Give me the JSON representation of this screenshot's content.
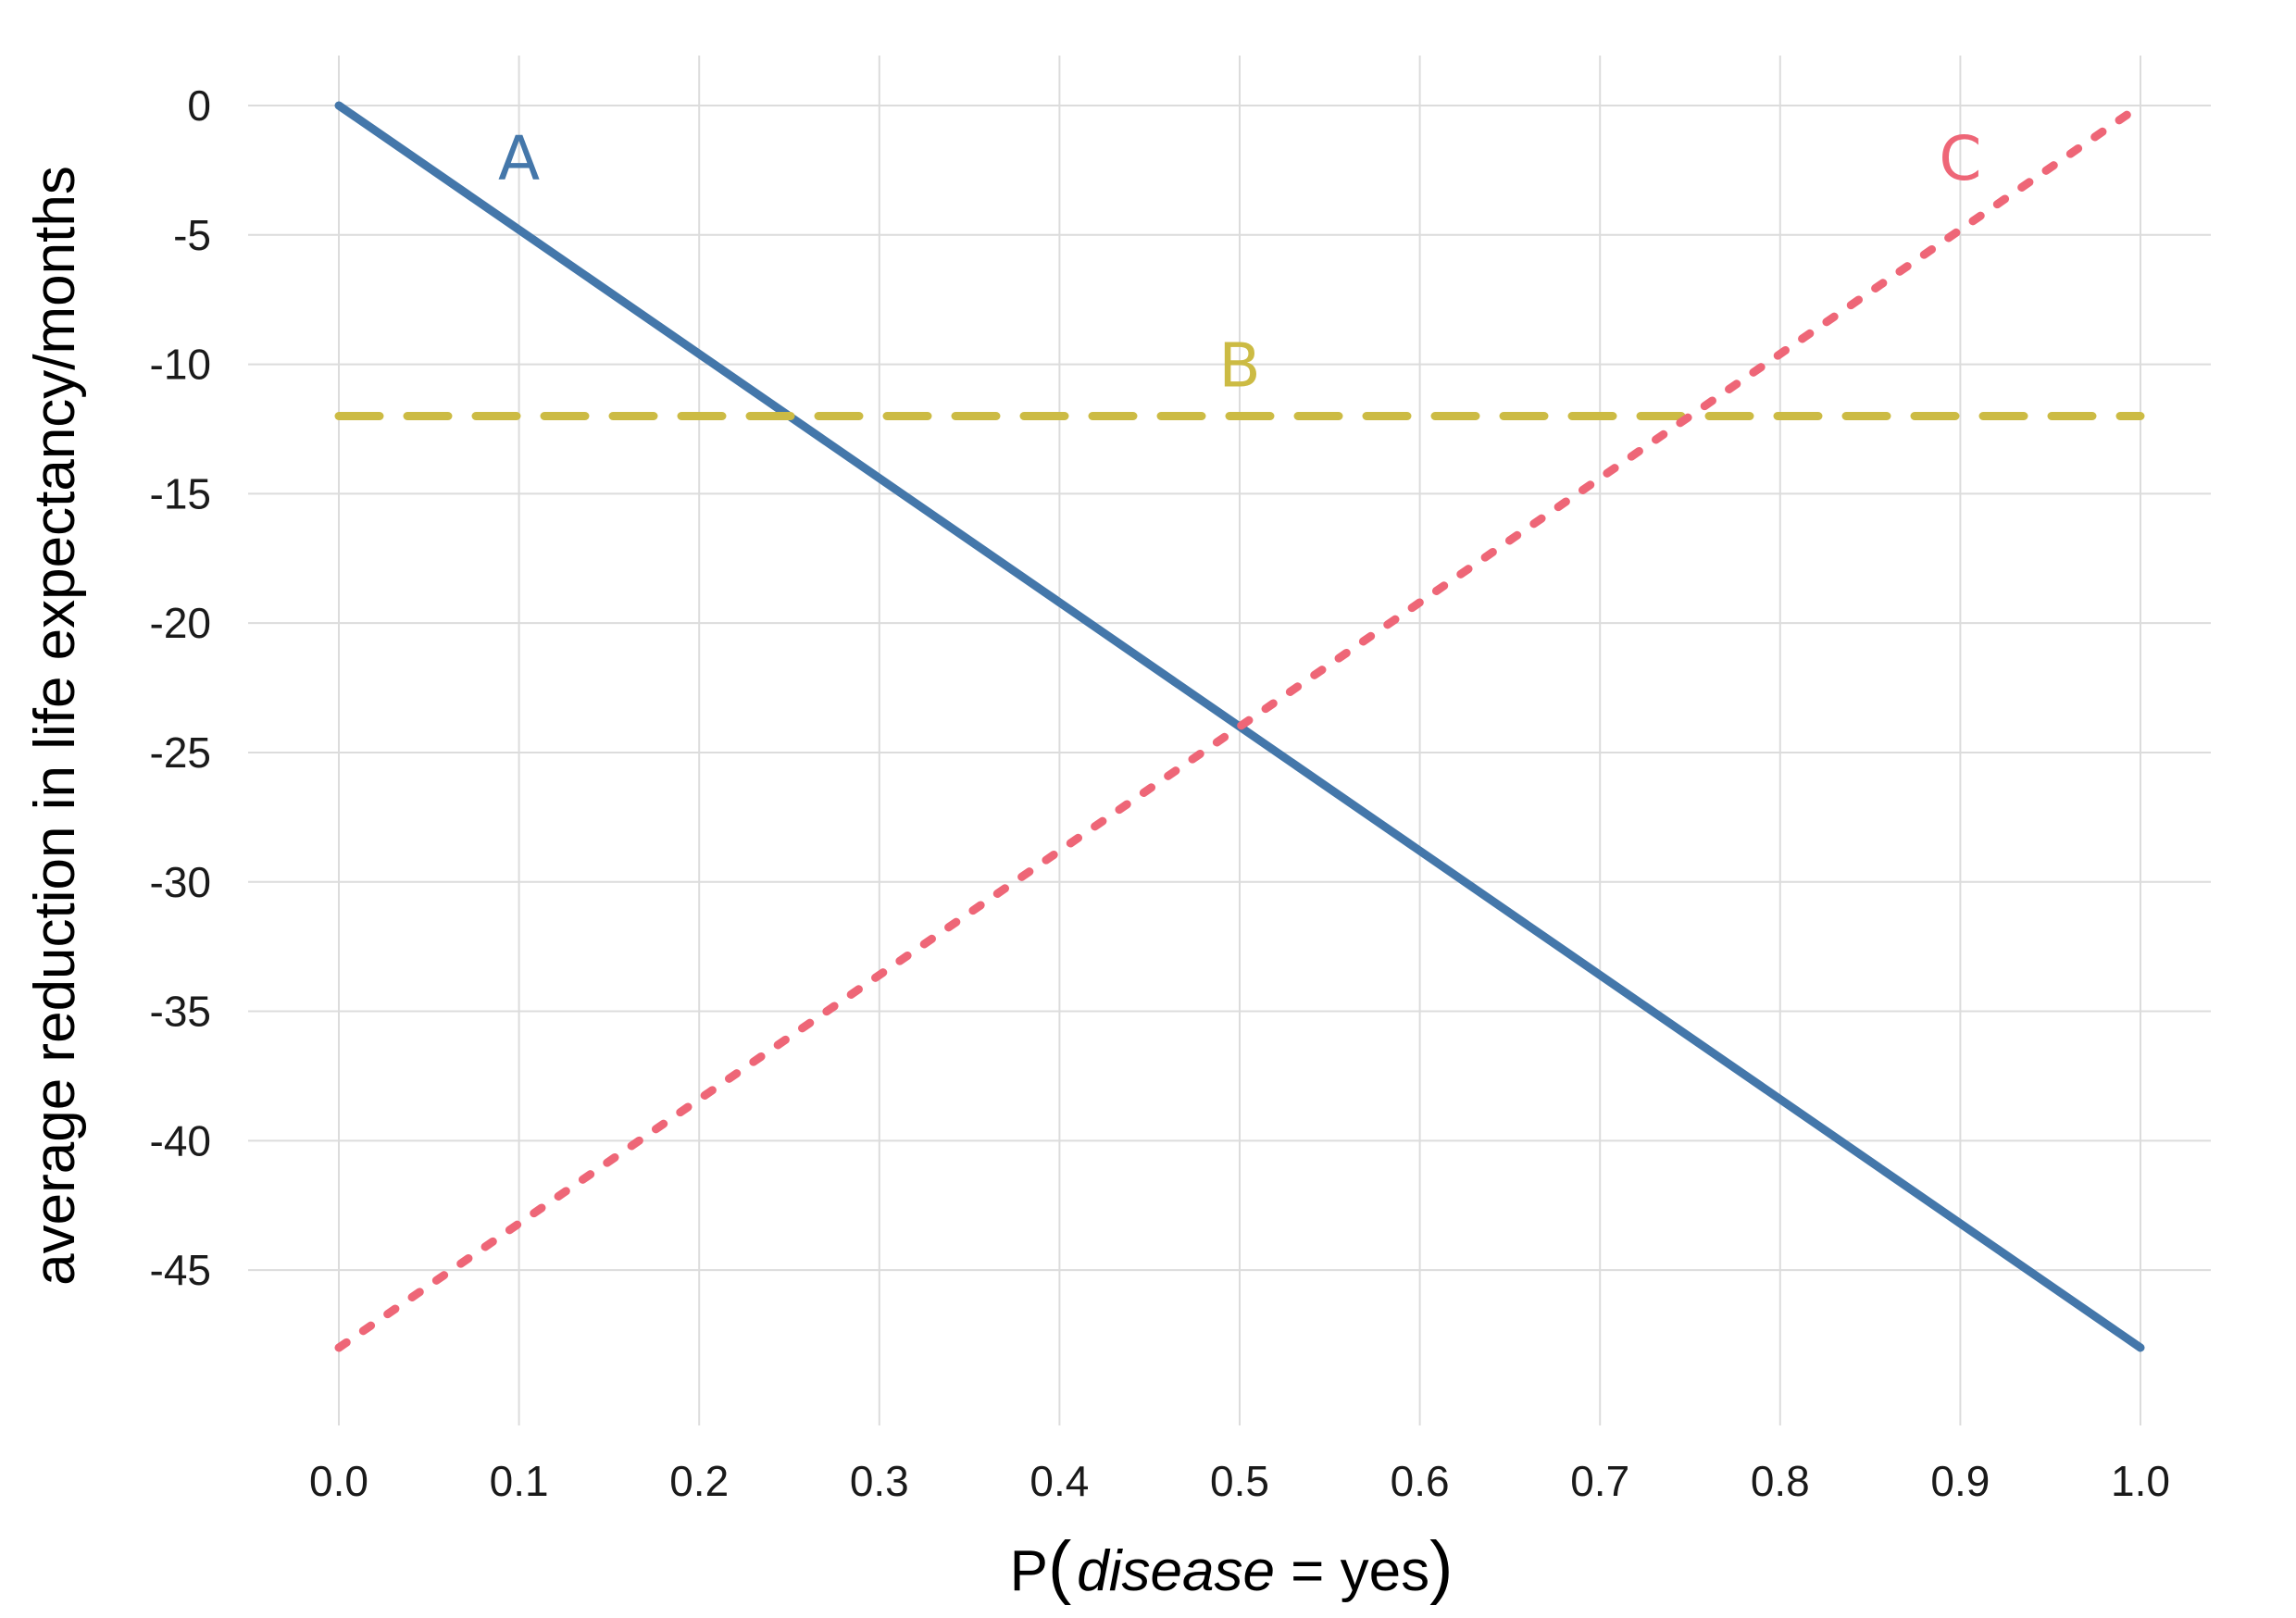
{
  "chart_data": {
    "type": "line",
    "title": "",
    "xlabel": {
      "prefix": "P",
      "open": "(",
      "italic": "disease",
      "rest": " = yes",
      "close": ")"
    },
    "ylabel": "average reduction in life expectancy/months",
    "xlim": [
      0.0,
      1.0
    ],
    "ylim": [
      -48,
      0
    ],
    "x_ticks": [
      "0.0",
      "0.1",
      "0.2",
      "0.3",
      "0.4",
      "0.5",
      "0.6",
      "0.7",
      "0.8",
      "0.9",
      "1.0"
    ],
    "y_ticks": [
      "0",
      "-5",
      "-10",
      "-15",
      "-20",
      "-25",
      "-30",
      "-35",
      "-40",
      "-45"
    ],
    "y_tick_values": [
      0,
      -5,
      -10,
      -15,
      -20,
      -25,
      -30,
      -35,
      -40,
      -45
    ],
    "grid": true,
    "series": [
      {
        "name": "A",
        "color": "#4477AA",
        "style": "solid",
        "x": [
          0.0,
          1.0
        ],
        "y": [
          0,
          -48
        ],
        "label_x": 0.1,
        "label_y": -2
      },
      {
        "name": "B",
        "color": "#CCBB44",
        "style": "dashed",
        "x": [
          0.0,
          1.0
        ],
        "y": [
          -12,
          -12
        ],
        "label_x": 0.5,
        "label_y": -10
      },
      {
        "name": "C",
        "color": "#EE6677",
        "style": "dotted",
        "x": [
          0.0,
          1.0
        ],
        "y": [
          -48,
          0
        ],
        "label_x": 0.9,
        "label_y": -2
      }
    ]
  }
}
